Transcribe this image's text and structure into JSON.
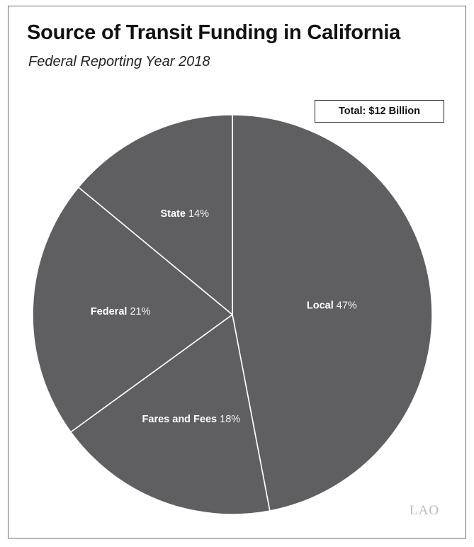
{
  "chart_data": {
    "type": "pie",
    "title": "Source of Transit Funding in California",
    "subtitle": "Federal Reporting Year 2018",
    "annotation": "Total: $12 Billion",
    "start_angle_deg": 0,
    "direction": "clockwise",
    "slices": [
      {
        "label": "Local",
        "value": 47,
        "value_label": "47%"
      },
      {
        "label": "Fares and Fees",
        "value": 18,
        "value_label": "18%"
      },
      {
        "label": "Federal",
        "value": 21,
        "value_label": "21%"
      },
      {
        "label": "State",
        "value": 14,
        "value_label": "14%"
      }
    ],
    "colors": {
      "slice_fill": "#5f5f61",
      "slice_border": "#ffffff",
      "label_text": "#ffffff"
    }
  },
  "logo_text": "LAO"
}
